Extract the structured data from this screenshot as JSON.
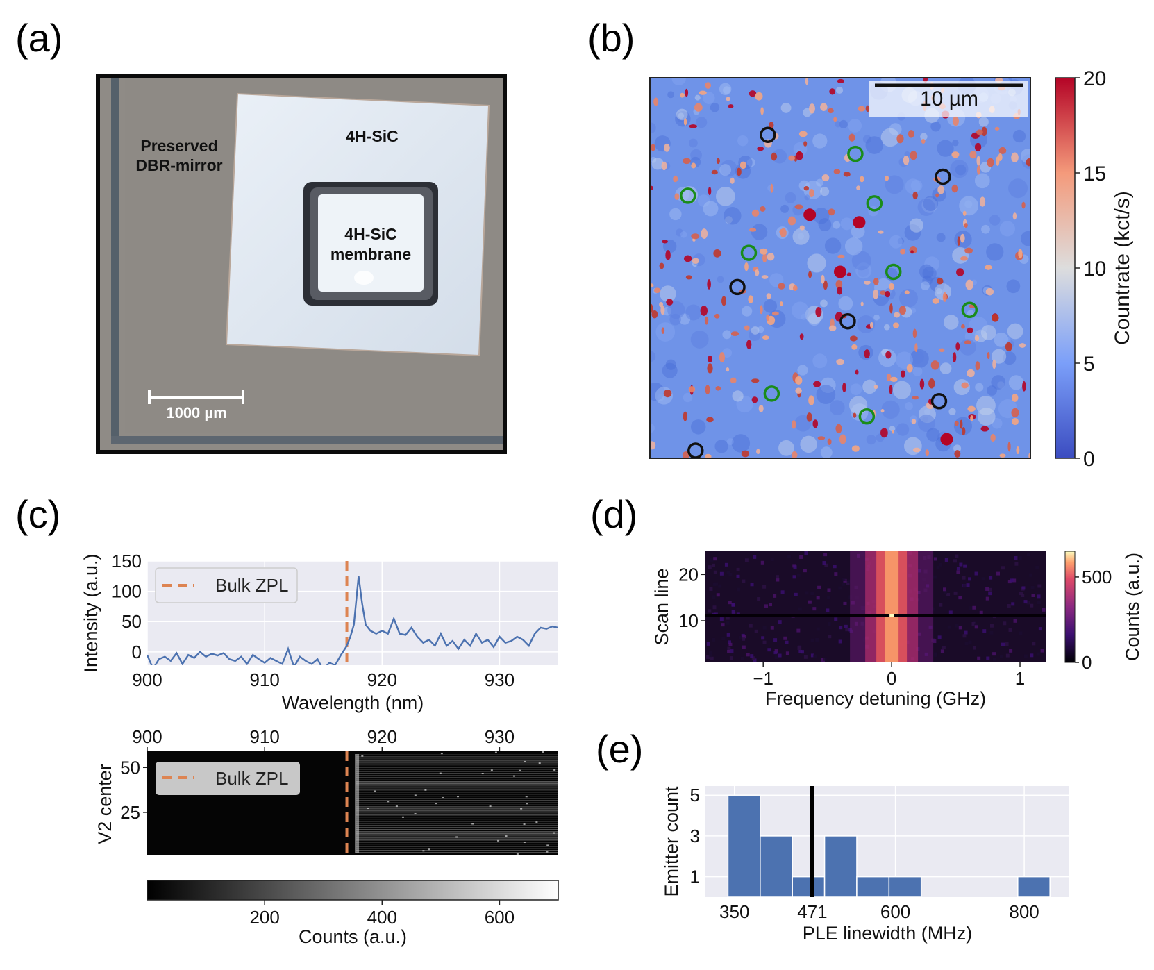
{
  "panels": {
    "a": {
      "letter": "(a)",
      "labels": {
        "dbr": [
          "Preserved",
          "DBR-mirror"
        ],
        "sic": "4H-SiC",
        "membrane": [
          "4H-SiC",
          "membrane"
        ],
        "scalebar": "1000 µm"
      },
      "colors": {
        "frame": "#000000",
        "substrate": "#8f8b86",
        "sic": "#e1e8f0",
        "membrane": "#eef3f8"
      }
    },
    "b": {
      "letter": "(b)",
      "scalebar": "10 µm",
      "colorbar": {
        "label": "Countrate (kct/s)",
        "ticks": [
          "0",
          "5",
          "10",
          "15",
          "20"
        ],
        "colormap": "coolwarm",
        "range": [
          0,
          20
        ]
      },
      "markers": {
        "black": [
          [
            0.31,
            0.15
          ],
          [
            0.77,
            0.26
          ],
          [
            0.23,
            0.55
          ],
          [
            0.52,
            0.64
          ],
          [
            0.76,
            0.85
          ],
          [
            0.12,
            0.98
          ]
        ],
        "green": [
          [
            0.54,
            0.2
          ],
          [
            0.1,
            0.31
          ],
          [
            0.59,
            0.33
          ],
          [
            0.26,
            0.46
          ],
          [
            0.64,
            0.51
          ],
          [
            0.84,
            0.61
          ],
          [
            0.32,
            0.83
          ],
          [
            0.57,
            0.89
          ]
        ]
      },
      "marker_colors": {
        "black": "#111111",
        "green": "#1a8c1a"
      }
    },
    "c": {
      "letter": "(c)",
      "spectrum": {
        "xlabel": "Wavelength (nm)",
        "ylabel": "Intensity (a.u.)",
        "xticks": [
          "900",
          "910",
          "920",
          "930"
        ],
        "yticks": [
          "0",
          "50",
          "100",
          "150"
        ],
        "xlim": [
          900,
          935
        ],
        "ylim": [
          -22,
          150
        ],
        "legend": "Bulk ZPL",
        "zpl_nm": 917,
        "line_color": "#4c72b0",
        "zpl_color": "#dd8452"
      },
      "map": {
        "xticks": [
          "900",
          "910",
          "920",
          "930"
        ],
        "yticks": [
          "25",
          "50"
        ],
        "ylabel": "V2 center",
        "legend": "Bulk ZPL",
        "ylim": [
          1,
          59
        ]
      },
      "colorbar": {
        "label": "Counts (a.u.)",
        "ticks": [
          "200",
          "400",
          "600"
        ],
        "range": [
          0,
          700
        ]
      }
    },
    "d": {
      "letter": "(d)",
      "xlabel": "Frequency detuning (GHz)",
      "ylabel": "Scan line",
      "xticks": [
        "−1",
        "0",
        "1"
      ],
      "yticks": [
        "10",
        "20"
      ],
      "xlim": [
        -1.45,
        1.2
      ],
      "ylim": [
        1,
        25
      ],
      "colorbar": {
        "label": "Counts (a.u.)",
        "ticks": [
          "0",
          "500"
        ],
        "range": [
          0,
          650
        ],
        "colormap": "magma"
      }
    },
    "e": {
      "letter": "(e)",
      "xlabel": "PLE linewidth (MHz)",
      "ylabel": "Emitter count",
      "xticks": [
        "350",
        "471",
        "600",
        "800"
      ],
      "yticks": [
        "1",
        "3",
        "5"
      ],
      "mean_line": 471,
      "bar_color": "#4c72b0"
    }
  },
  "chart_data": [
    {
      "type": "line",
      "panel": "c-top",
      "xlabel": "Wavelength (nm)",
      "ylabel": "Intensity (a.u.)",
      "xlim": [
        900,
        935
      ],
      "ylim": [
        -22,
        150
      ],
      "series": [
        {
          "x": [
            900,
            900.5,
            901,
            901.5,
            902,
            902.5,
            903,
            903.5,
            904,
            904.5,
            905,
            905.5,
            906,
            906.5,
            907,
            907.5,
            908,
            908.5,
            909,
            909.5,
            910,
            910.5,
            911,
            911.5,
            912,
            912.5,
            913,
            913.5,
            914,
            914.5,
            915,
            915.5,
            916,
            916.5,
            917,
            917.3,
            917.6,
            918,
            918.3,
            918.6,
            919,
            919.5,
            920,
            920.5,
            921,
            921.5,
            922,
            922.5,
            923,
            923.5,
            924,
            924.5,
            925,
            925.5,
            926,
            926.5,
            927,
            927.5,
            928,
            928.5,
            929,
            929.5,
            930,
            930.5,
            931,
            931.5,
            932,
            932.5,
            933,
            933.5,
            934,
            934.5,
            935
          ],
          "y": [
            -5,
            -28,
            -12,
            -8,
            -15,
            -2,
            -20,
            -5,
            -10,
            0,
            -8,
            -3,
            -6,
            -2,
            -12,
            -15,
            -8,
            -20,
            -5,
            -12,
            -18,
            -10,
            -15,
            -20,
            5,
            -25,
            -8,
            -15,
            -20,
            -12,
            -30,
            -18,
            -22,
            -5,
            10,
            25,
            45,
            125,
            80,
            45,
            35,
            30,
            35,
            30,
            55,
            30,
            28,
            40,
            25,
            15,
            20,
            10,
            30,
            10,
            18,
            5,
            20,
            10,
            30,
            15,
            20,
            8,
            25,
            15,
            18,
            25,
            20,
            10,
            30,
            40,
            38,
            42,
            40
          ]
        }
      ],
      "annotations": [
        {
          "type": "vline",
          "x": 917,
          "label": "Bulk ZPL"
        }
      ]
    },
    {
      "type": "bar",
      "panel": "e",
      "xlabel": "PLE linewidth (MHz)",
      "ylabel": "Emitter count",
      "bin_edges": [
        340,
        390,
        440,
        490,
        540,
        590,
        640,
        690,
        740,
        790,
        840
      ],
      "values": [
        5,
        3,
        1,
        3,
        1,
        1,
        0,
        0,
        0,
        1
      ],
      "ylim": [
        0,
        5
      ],
      "mean_line": 471
    }
  ]
}
